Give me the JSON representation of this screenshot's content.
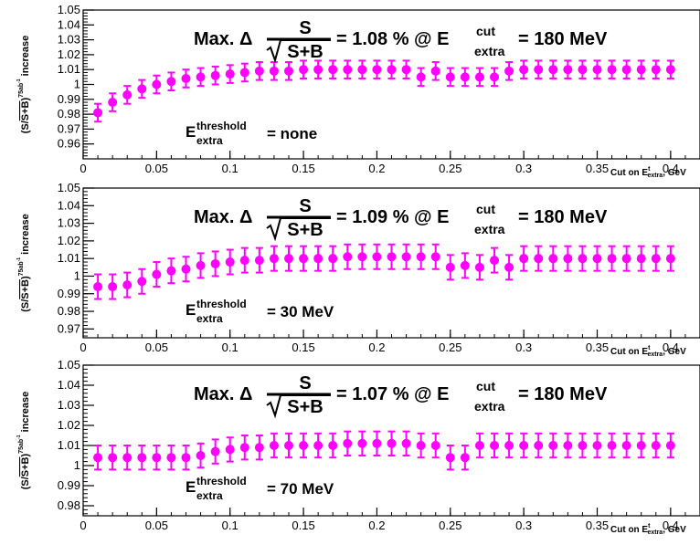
{
  "chart_data": [
    {
      "type": "scatter",
      "ylabel": "increase",
      "ylabel_prefix": "(S/",
      "ylabel_sqrt_content": "S+B",
      "ylabel_suffix": ")",
      "ylabel_superscript": "75ab",
      "ylabel_superscript_exp": "-1",
      "xlabel": "Cut on E",
      "xlabel_sup": "t",
      "xlabel_sub": "extra",
      "xlabel_unit": ", GeV",
      "xlim": [
        0,
        0.42
      ],
      "ylim": [
        0.95,
        1.05
      ],
      "xticks": [
        "0",
        "0.05",
        "0.1",
        "0.15",
        "0.2",
        "0.25",
        "0.3",
        "0.35",
        "0.4"
      ],
      "yticks": [
        "0.96",
        "0.97",
        "0.98",
        "0.99",
        "1",
        "1.01",
        "1.02",
        "1.03",
        "1.04",
        "1.05"
      ],
      "marker_color": "#ff00ff",
      "annotation": {
        "max_prefix": "Max. Δ",
        "frac_num": "S",
        "frac_den": "S+B",
        "value_text": "= 1.08 % @ E",
        "cut_sup": "cut",
        "cut_sub": "extra",
        "cut_value": "= 180 MeV"
      },
      "threshold": {
        "label": "E",
        "sup": "threshold",
        "sub": "extra",
        "value": "= none"
      },
      "x": [
        0.01,
        0.02,
        0.03,
        0.04,
        0.05,
        0.06,
        0.07,
        0.08,
        0.09,
        0.1,
        0.11,
        0.12,
        0.13,
        0.14,
        0.15,
        0.16,
        0.17,
        0.18,
        0.19,
        0.2,
        0.21,
        0.22,
        0.23,
        0.24,
        0.25,
        0.26,
        0.27,
        0.28,
        0.29,
        0.3,
        0.31,
        0.32,
        0.33,
        0.34,
        0.35,
        0.36,
        0.37,
        0.38,
        0.39,
        0.4
      ],
      "y": [
        0.981,
        0.988,
        0.993,
        0.997,
        1.0,
        1.002,
        1.004,
        1.005,
        1.006,
        1.007,
        1.008,
        1.009,
        1.009,
        1.009,
        1.01,
        1.01,
        1.01,
        1.01,
        1.01,
        1.01,
        1.01,
        1.01,
        1.005,
        1.009,
        1.005,
        1.005,
        1.005,
        1.005,
        1.009,
        1.01,
        1.01,
        1.01,
        1.01,
        1.01,
        1.01,
        1.01,
        1.01,
        1.01,
        1.01,
        1.01
      ],
      "err": [
        0.006,
        0.006,
        0.006,
        0.006,
        0.006,
        0.006,
        0.006,
        0.006,
        0.006,
        0.006,
        0.006,
        0.006,
        0.006,
        0.006,
        0.006,
        0.006,
        0.006,
        0.006,
        0.006,
        0.006,
        0.006,
        0.006,
        0.006,
        0.006,
        0.006,
        0.006,
        0.006,
        0.006,
        0.006,
        0.006,
        0.006,
        0.006,
        0.006,
        0.006,
        0.006,
        0.006,
        0.006,
        0.006,
        0.006,
        0.006
      ]
    },
    {
      "type": "scatter",
      "ylabel": "increase",
      "ylabel_prefix": "(S/",
      "ylabel_sqrt_content": "S+B",
      "ylabel_suffix": ")",
      "ylabel_superscript": "75ab",
      "ylabel_superscript_exp": "-1",
      "xlabel": "Cut on E",
      "xlabel_sup": "t",
      "xlabel_sub": "extra",
      "xlabel_unit": ", GeV",
      "xlim": [
        0,
        0.42
      ],
      "ylim": [
        0.965,
        1.05
      ],
      "xticks": [
        "0",
        "0.05",
        "0.1",
        "0.15",
        "0.2",
        "0.25",
        "0.3",
        "0.35",
        "0.4"
      ],
      "yticks": [
        "0.97",
        "0.98",
        "0.99",
        "1",
        "1.01",
        "1.02",
        "1.03",
        "1.04",
        "1.05"
      ],
      "marker_color": "#ff00ff",
      "annotation": {
        "max_prefix": "Max. Δ",
        "frac_num": "S",
        "frac_den": "S+B",
        "value_text": "= 1.09 % @ E",
        "cut_sup": "cut",
        "cut_sub": "extra",
        "cut_value": "= 180 MeV"
      },
      "threshold": {
        "label": "E",
        "sup": "threshold",
        "sub": "extra",
        "value": "= 30 MeV"
      },
      "x": [
        0.01,
        0.02,
        0.03,
        0.04,
        0.05,
        0.06,
        0.07,
        0.08,
        0.09,
        0.1,
        0.11,
        0.12,
        0.13,
        0.14,
        0.15,
        0.16,
        0.17,
        0.18,
        0.19,
        0.2,
        0.21,
        0.22,
        0.23,
        0.24,
        0.25,
        0.26,
        0.27,
        0.28,
        0.29,
        0.3,
        0.31,
        0.32,
        0.33,
        0.34,
        0.35,
        0.36,
        0.37,
        0.38,
        0.39,
        0.4
      ],
      "y": [
        0.994,
        0.994,
        0.995,
        0.997,
        1.001,
        1.003,
        1.004,
        1.006,
        1.007,
        1.008,
        1.009,
        1.009,
        1.01,
        1.01,
        1.01,
        1.01,
        1.01,
        1.011,
        1.011,
        1.011,
        1.011,
        1.011,
        1.011,
        1.011,
        1.005,
        1.006,
        1.005,
        1.009,
        1.005,
        1.01,
        1.01,
        1.01,
        1.01,
        1.01,
        1.01,
        1.01,
        1.01,
        1.01,
        1.01,
        1.01
      ],
      "err": [
        0.007,
        0.007,
        0.007,
        0.007,
        0.007,
        0.007,
        0.007,
        0.007,
        0.007,
        0.007,
        0.007,
        0.007,
        0.007,
        0.007,
        0.007,
        0.007,
        0.007,
        0.007,
        0.007,
        0.007,
        0.007,
        0.007,
        0.007,
        0.007,
        0.007,
        0.007,
        0.007,
        0.007,
        0.007,
        0.007,
        0.007,
        0.007,
        0.007,
        0.007,
        0.007,
        0.007,
        0.007,
        0.007,
        0.007,
        0.007
      ]
    },
    {
      "type": "scatter",
      "ylabel": "increase",
      "ylabel_prefix": "(S/",
      "ylabel_sqrt_content": "S+B",
      "ylabel_suffix": ")",
      "ylabel_superscript": "75ab",
      "ylabel_superscript_exp": "-1",
      "xlabel": "Cut on E",
      "xlabel_sup": "t",
      "xlabel_sub": "extra",
      "xlabel_unit": ", GeV",
      "xlim": [
        0,
        0.42
      ],
      "ylim": [
        0.975,
        1.05
      ],
      "xticks": [
        "0",
        "0.05",
        "0.1",
        "0.15",
        "0.2",
        "0.25",
        "0.3",
        "0.35",
        "0.4"
      ],
      "yticks": [
        "0.98",
        "0.99",
        "1",
        "1.01",
        "1.02",
        "1.03",
        "1.04",
        "1.05"
      ],
      "marker_color": "#ff00ff",
      "annotation": {
        "max_prefix": "Max. Δ",
        "frac_num": "S",
        "frac_den": "S+B",
        "value_text": "= 1.07 % @ E",
        "cut_sup": "cut",
        "cut_sub": "extra",
        "cut_value": "= 180 MeV"
      },
      "threshold": {
        "label": "E",
        "sup": "threshold",
        "sub": "extra",
        "value": "= 70 MeV"
      },
      "x": [
        0.01,
        0.02,
        0.03,
        0.04,
        0.05,
        0.06,
        0.07,
        0.08,
        0.09,
        0.1,
        0.11,
        0.12,
        0.13,
        0.14,
        0.15,
        0.16,
        0.17,
        0.18,
        0.19,
        0.2,
        0.21,
        0.22,
        0.23,
        0.24,
        0.25,
        0.26,
        0.27,
        0.28,
        0.29,
        0.3,
        0.31,
        0.32,
        0.33,
        0.34,
        0.35,
        0.36,
        0.37,
        0.38,
        0.39,
        0.4
      ],
      "y": [
        1.004,
        1.004,
        1.004,
        1.004,
        1.004,
        1.004,
        1.004,
        1.005,
        1.007,
        1.008,
        1.009,
        1.009,
        1.01,
        1.01,
        1.01,
        1.01,
        1.01,
        1.011,
        1.011,
        1.011,
        1.011,
        1.011,
        1.01,
        1.01,
        1.004,
        1.004,
        1.01,
        1.01,
        1.01,
        1.01,
        1.01,
        1.01,
        1.01,
        1.01,
        1.01,
        1.01,
        1.01,
        1.01,
        1.01,
        1.01
      ],
      "err": [
        0.006,
        0.006,
        0.006,
        0.006,
        0.006,
        0.006,
        0.006,
        0.006,
        0.006,
        0.006,
        0.006,
        0.006,
        0.006,
        0.006,
        0.006,
        0.006,
        0.006,
        0.006,
        0.006,
        0.006,
        0.006,
        0.006,
        0.006,
        0.006,
        0.006,
        0.006,
        0.006,
        0.006,
        0.006,
        0.006,
        0.006,
        0.006,
        0.006,
        0.006,
        0.006,
        0.006,
        0.006,
        0.006,
        0.006,
        0.006
      ]
    }
  ]
}
